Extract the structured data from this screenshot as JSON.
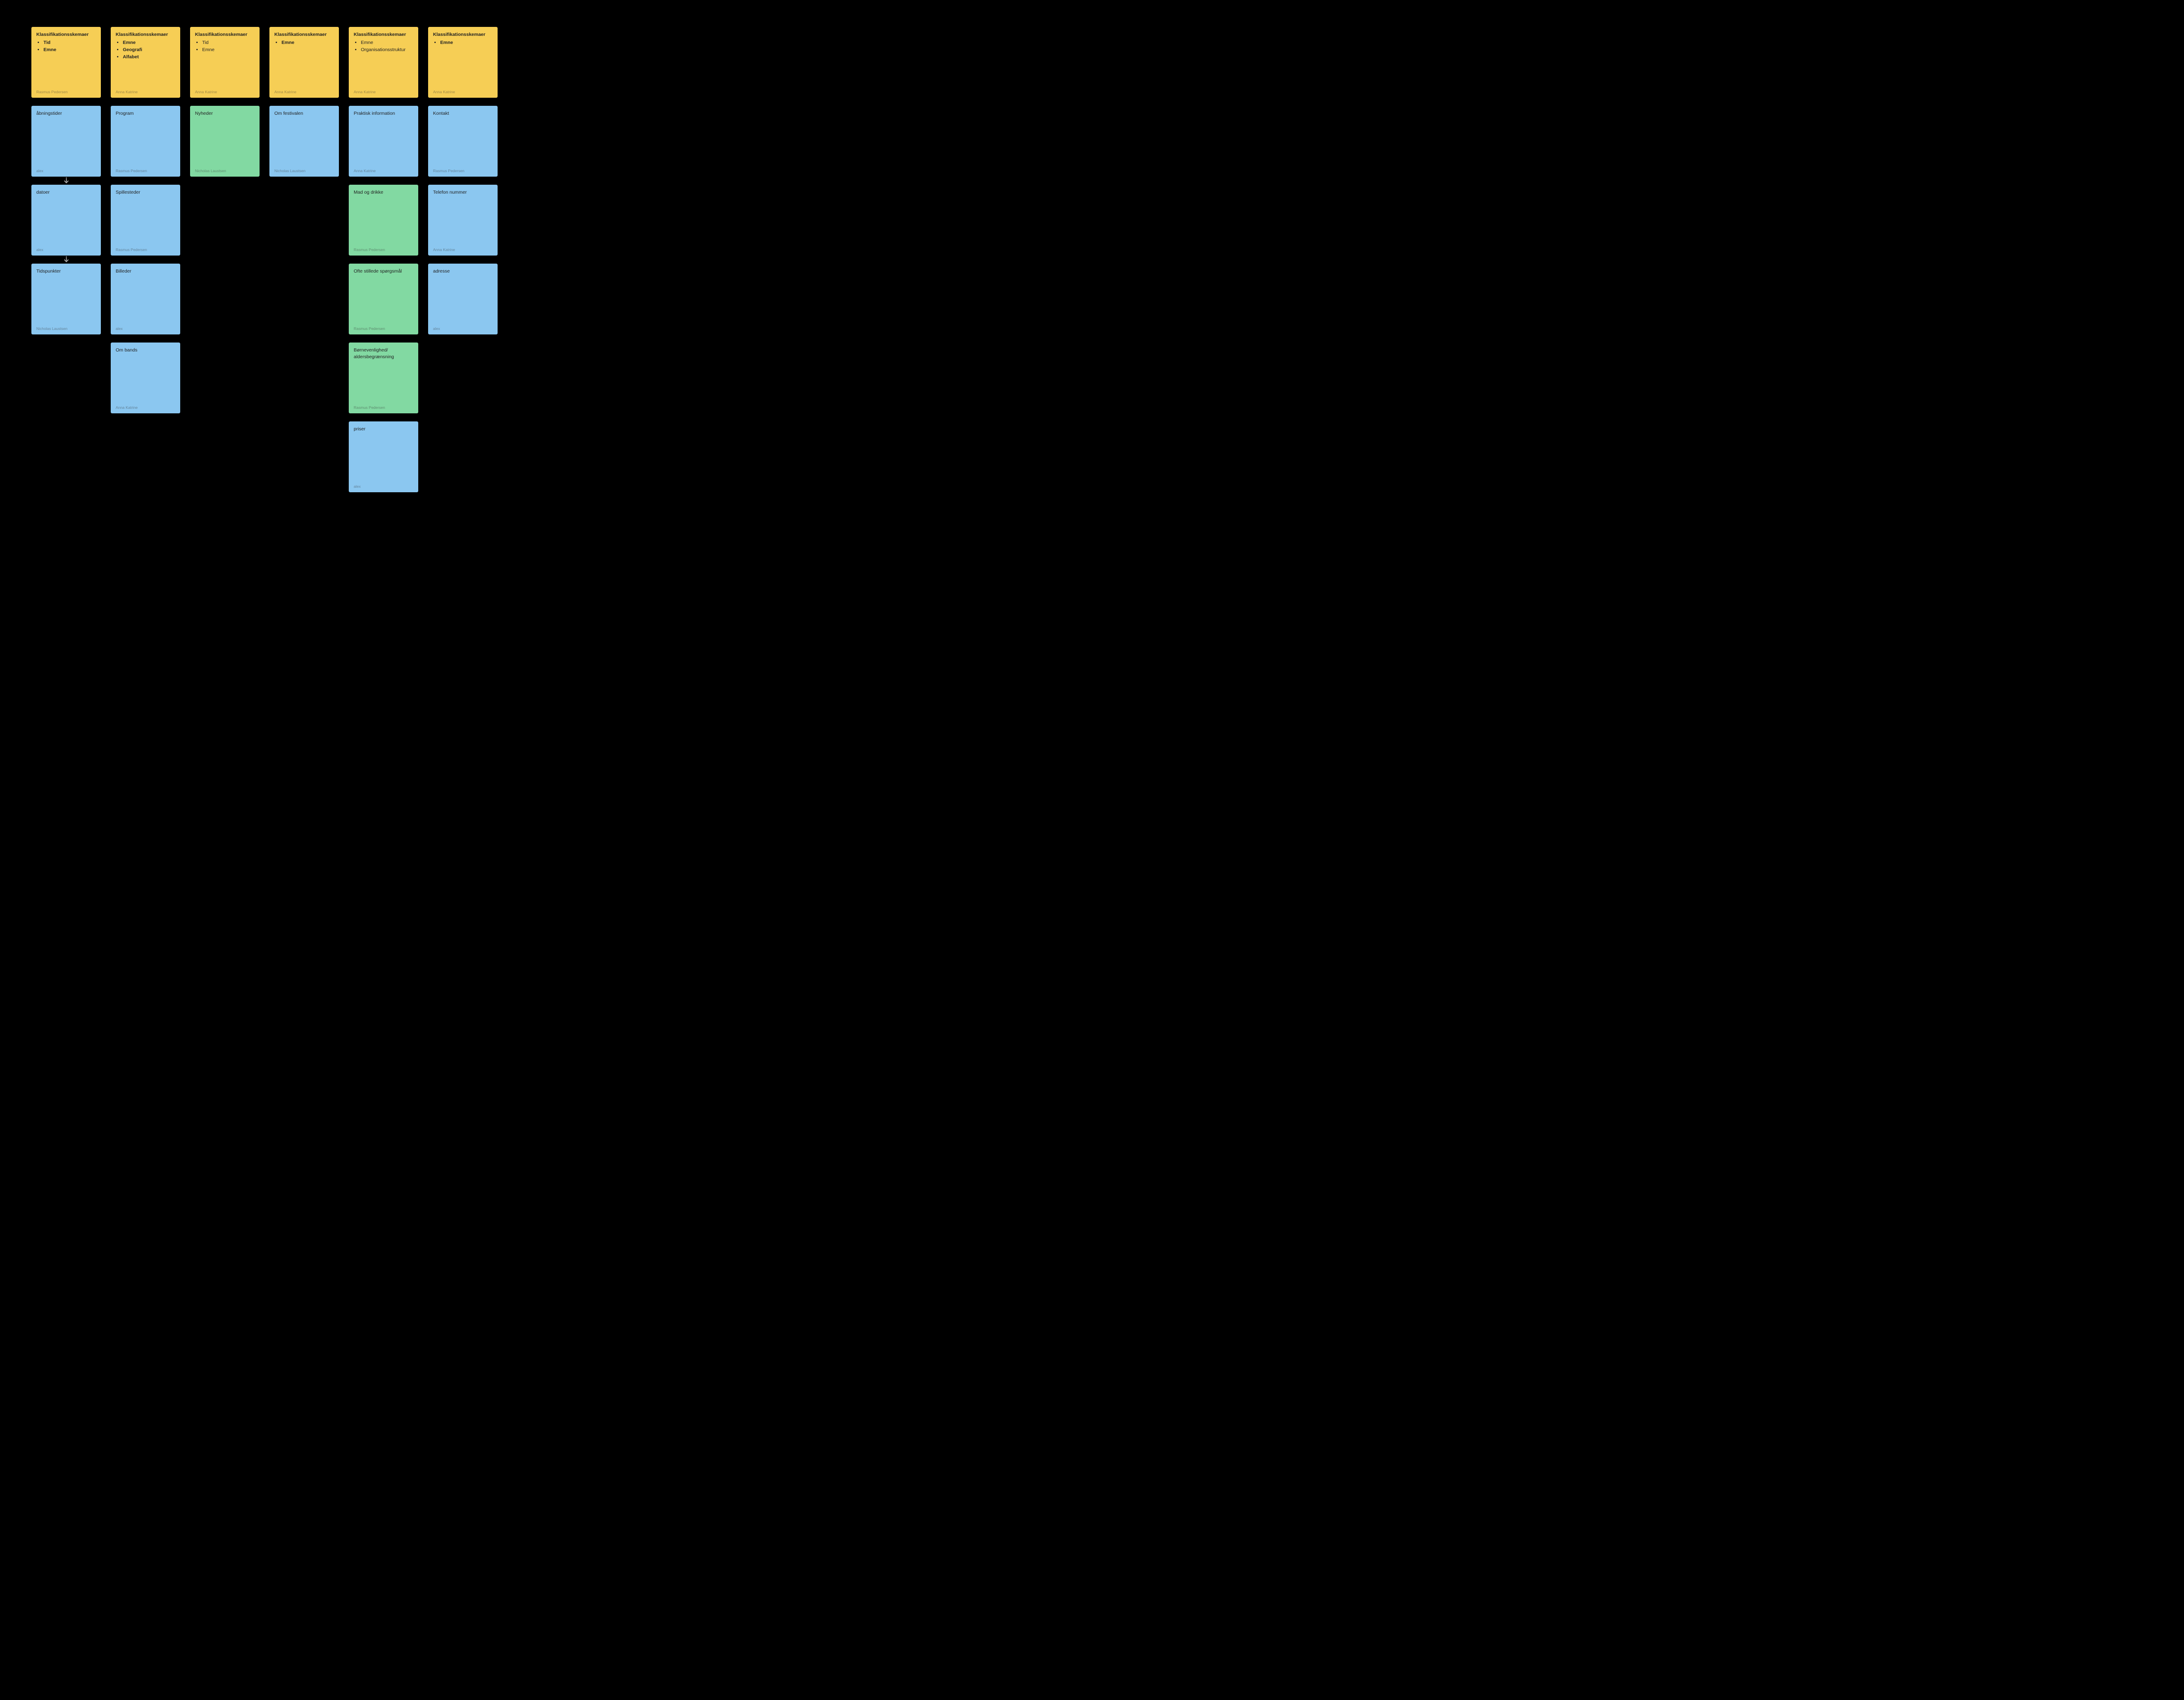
{
  "colors": {
    "yellow": "#f6ce55",
    "blue": "#8bc7f0",
    "green": "#82d9a2",
    "bg": "#000000",
    "arrow": "#d6d6d6"
  },
  "header_title": "Klassifikationsskemaer",
  "columns": [
    {
      "header": {
        "items": [
          "Tid",
          "Emne"
        ],
        "bold_items": true,
        "author": "Rasmus Pedersen"
      },
      "arrows_between": true,
      "cards": [
        {
          "title": "åbningstider",
          "color": "blue",
          "author": "alex"
        },
        {
          "title": "datoer",
          "color": "blue",
          "author": "alex"
        },
        {
          "title": "Tidspunkter",
          "color": "blue",
          "author": "Nicholas Laustsen"
        }
      ]
    },
    {
      "header": {
        "items": [
          "Emne",
          "Geografi",
          "Alfabet"
        ],
        "bold_items": true,
        "author": "Anna Katrine"
      },
      "arrows_between": false,
      "cards": [
        {
          "title": "Program",
          "color": "blue",
          "author": "Rasmus Pedersen"
        },
        {
          "title": "Spillesteder",
          "color": "blue",
          "author": "Rasmus Pedersen"
        },
        {
          "title": "Billeder",
          "color": "blue",
          "author": "alex"
        },
        {
          "title": "Om bands",
          "color": "blue",
          "author": "Anna Katrine"
        }
      ]
    },
    {
      "header": {
        "items": [
          "Tid",
          "Emne"
        ],
        "bold_items": false,
        "author": "Anna Katrine"
      },
      "arrows_between": false,
      "cards": [
        {
          "title": "Nyheder",
          "color": "green",
          "author": "Nicholas Laustsen"
        }
      ]
    },
    {
      "header": {
        "items": [
          "Emne"
        ],
        "bold_items": true,
        "author": "Anna Katrine"
      },
      "arrows_between": false,
      "cards": [
        {
          "title": "Om festivalen",
          "color": "blue",
          "author": "Nicholas Laustsen"
        }
      ]
    },
    {
      "header": {
        "items": [
          "Emne",
          "Organisationsstruktur"
        ],
        "bold_items": false,
        "author": "Anna Katrine"
      },
      "arrows_between": false,
      "cards": [
        {
          "title": "Praktisk information",
          "color": "blue",
          "author": "Anna Katrine"
        },
        {
          "title": "Mad og drikke",
          "color": "green",
          "author": "Rasmus Pedersen"
        },
        {
          "title": "Ofte stillede spørgsmål",
          "color": "green",
          "author": "Rasmus Pedersen"
        },
        {
          "title": "Børnevenlighed/\naldersbegrænsning",
          "color": "green",
          "author": "Rasmus Pedersen"
        },
        {
          "title": "priser",
          "color": "blue",
          "author": "alex"
        }
      ]
    },
    {
      "header": {
        "items": [
          "Emne"
        ],
        "bold_items": true,
        "author": "Anna Katrine"
      },
      "arrows_between": false,
      "cards": [
        {
          "title": "Kontakt",
          "color": "blue",
          "author": "Rasmus Pedersen"
        },
        {
          "title": "Telefon nummer",
          "color": "blue",
          "author": "Anna Katrine"
        },
        {
          "title": "adresse",
          "color": "blue",
          "author": "alex"
        }
      ]
    }
  ]
}
